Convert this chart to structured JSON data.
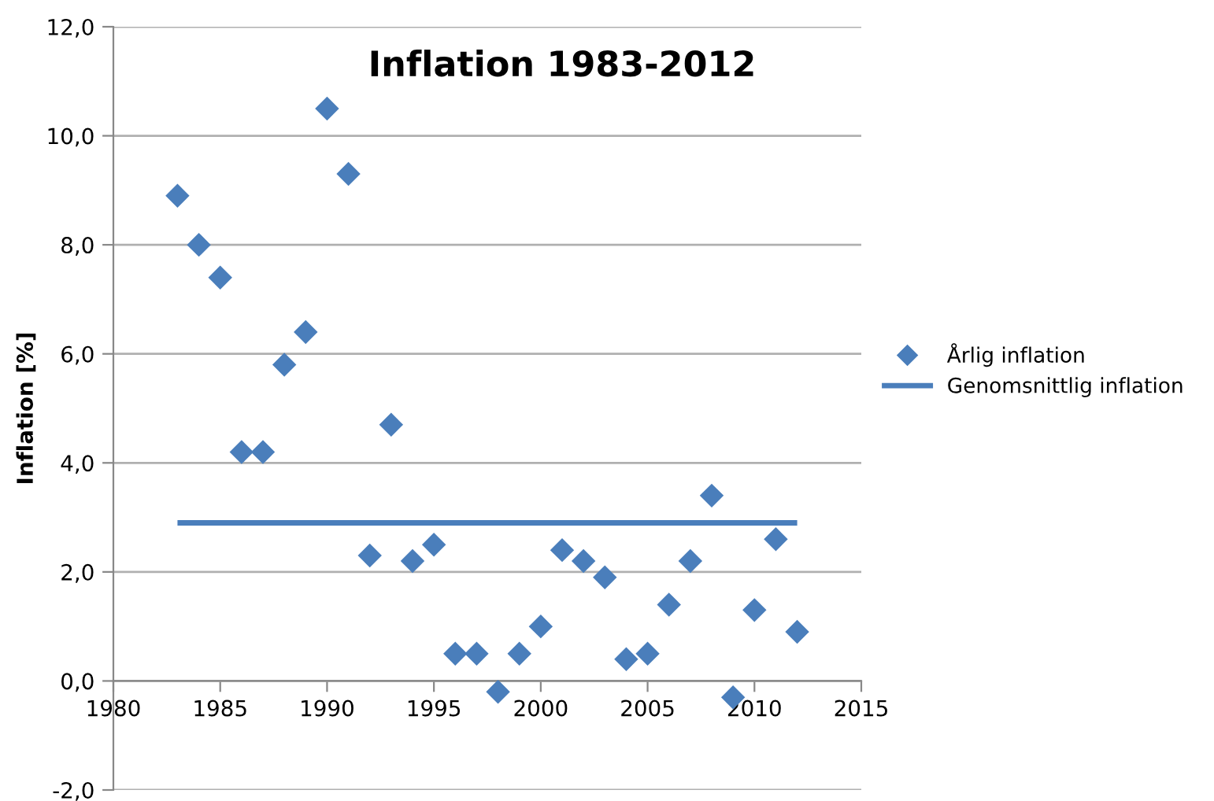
{
  "chart_data": {
    "type": "scatter",
    "title": "Inflation 1983-2012",
    "ylabel": "Inflation [%]",
    "x": [
      1983,
      1984,
      1985,
      1986,
      1987,
      1988,
      1989,
      1990,
      1991,
      1992,
      1993,
      1994,
      1995,
      1996,
      1997,
      1998,
      1999,
      2000,
      2001,
      2002,
      2003,
      2004,
      2005,
      2006,
      2007,
      2008,
      2009,
      2010,
      2011,
      2012
    ],
    "series": [
      {
        "name": "Årlig inflation",
        "color": "#4a7ebb",
        "marker": "diamond",
        "values": [
          8.9,
          8.0,
          7.4,
          4.2,
          4.2,
          5.8,
          6.4,
          10.5,
          9.3,
          2.3,
          4.7,
          2.2,
          2.5,
          0.5,
          0.5,
          -0.2,
          0.5,
          1.0,
          2.4,
          2.2,
          1.9,
          0.4,
          0.5,
          1.4,
          2.2,
          3.4,
          -0.3,
          1.3,
          2.6,
          0.9
        ]
      },
      {
        "name": "Genomsnittlig inflation",
        "type": "line",
        "color": "#4a7ebb",
        "marker": "none",
        "line_style": "solid",
        "x": [
          1983,
          2012
        ],
        "values": [
          2.9,
          2.9
        ]
      }
    ],
    "xlim": [
      1980,
      2015
    ],
    "xticks": [
      1980,
      1985,
      1990,
      1995,
      2000,
      2005,
      2010,
      2015
    ],
    "ylim": [
      -2,
      12
    ],
    "yticks": [
      {
        "value": -2,
        "label": "-2,0"
      },
      {
        "value": 0,
        "label": "0,0"
      },
      {
        "value": 2,
        "label": "2,0"
      },
      {
        "value": 4,
        "label": "4,0"
      },
      {
        "value": 6,
        "label": "6,0"
      },
      {
        "value": 8,
        "label": "8,0"
      },
      {
        "value": 10,
        "label": "10,0"
      },
      {
        "value": 12,
        "label": "12,0"
      }
    ],
    "grid": "y",
    "legend": "right"
  }
}
